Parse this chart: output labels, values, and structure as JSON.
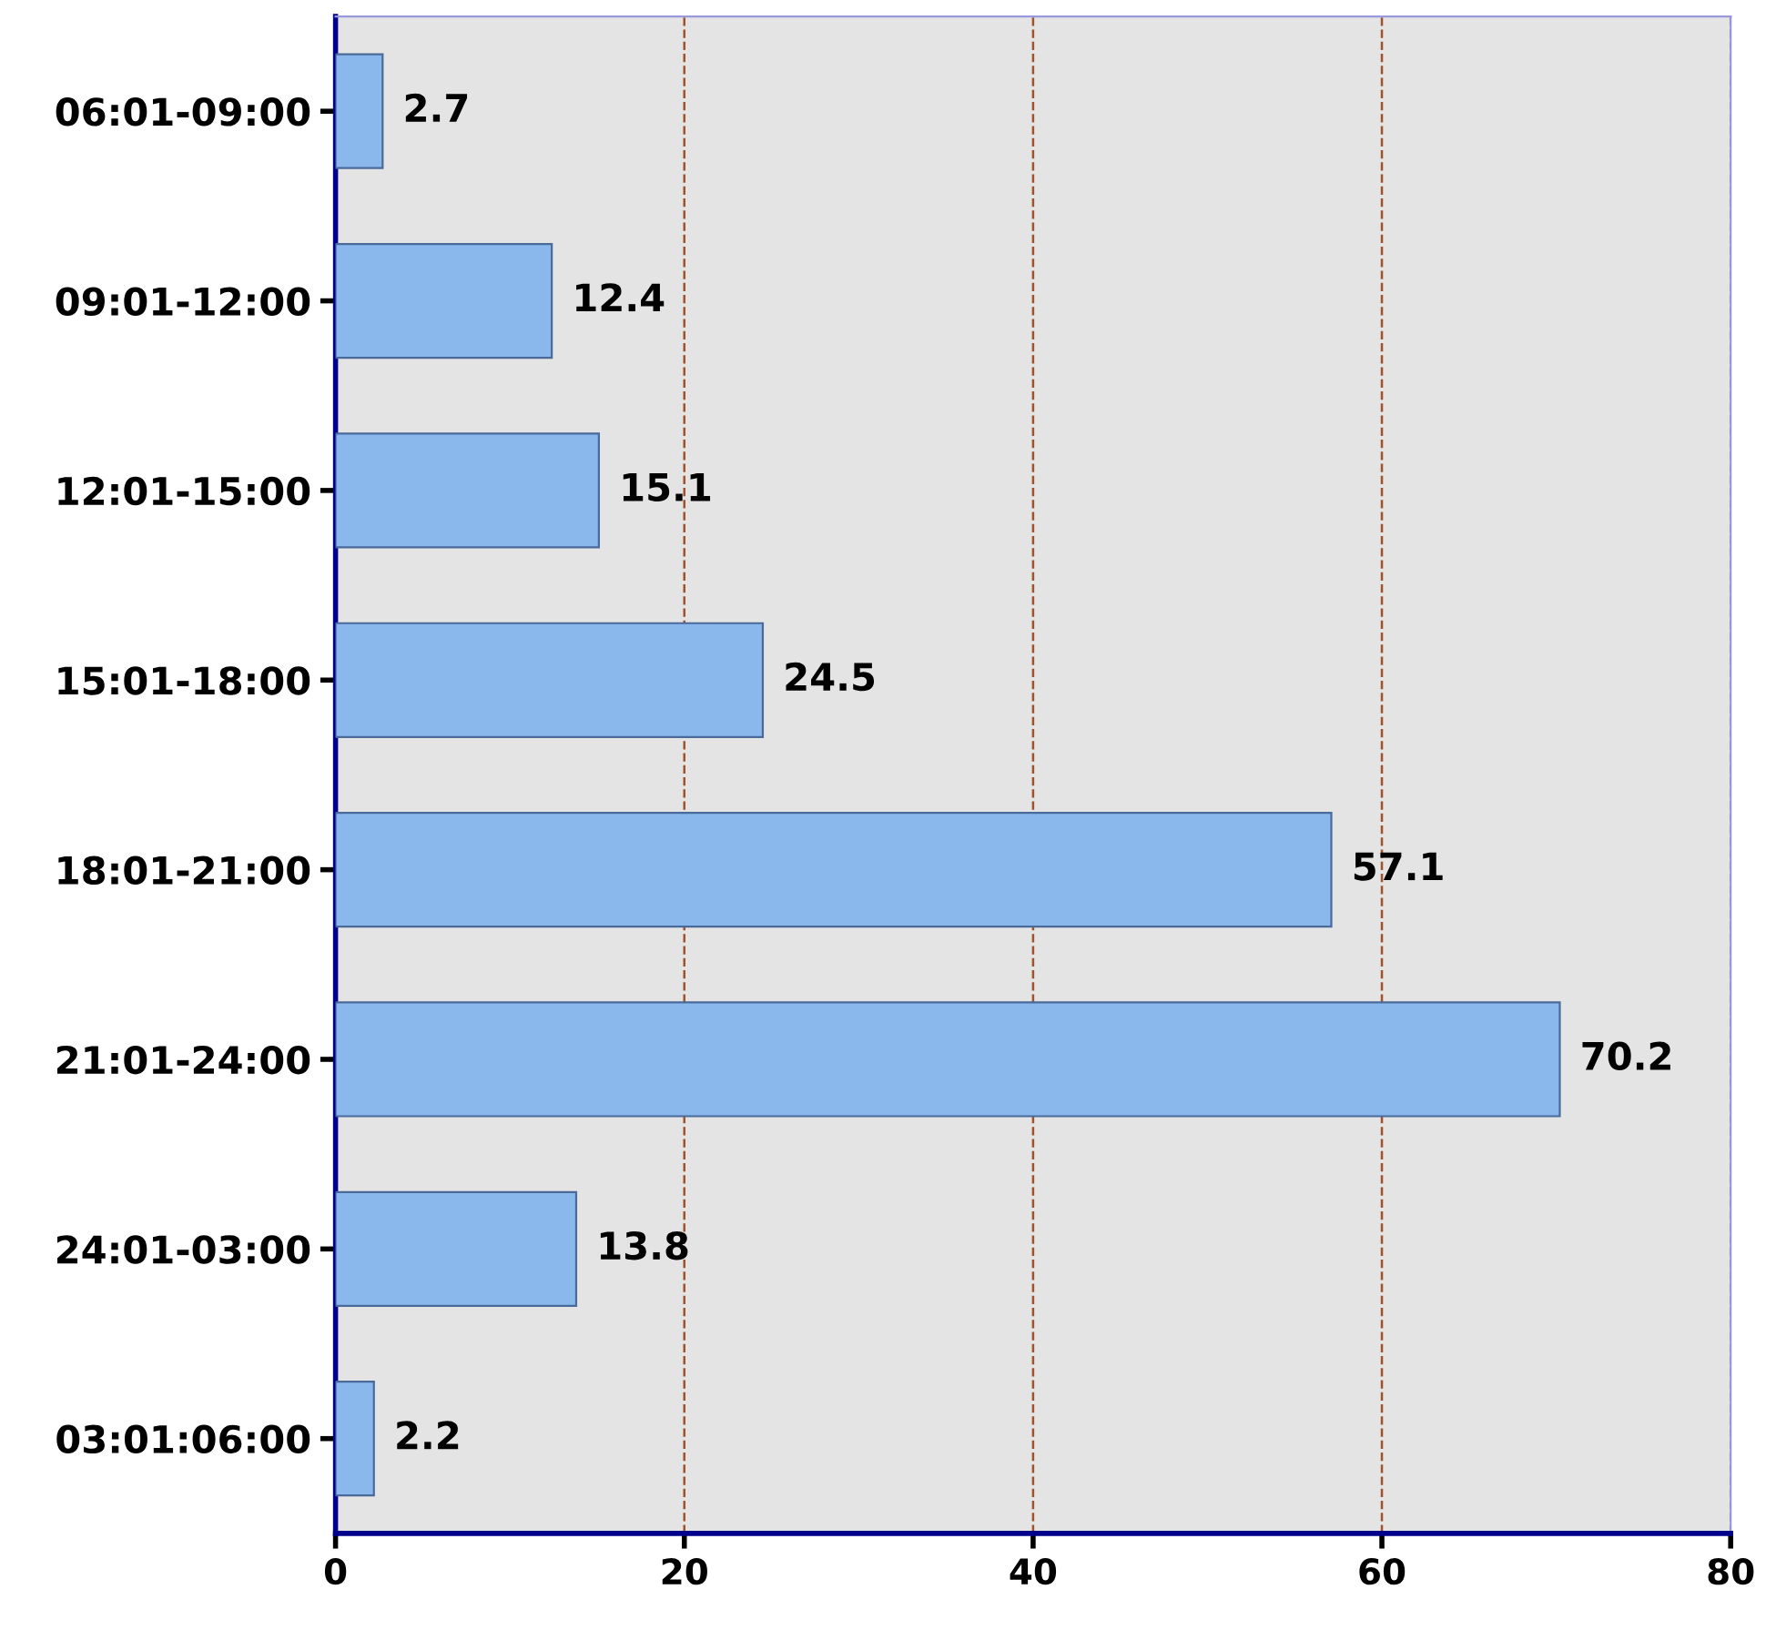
{
  "chart_data": {
    "type": "bar",
    "orientation": "horizontal",
    "categories": [
      "06:01-09:00",
      "09:01-12:00",
      "12:01-15:00",
      "15:01-18:00",
      "18:01-21:00",
      "21:01-24:00",
      "24:01-03:00",
      "03:01:06:00"
    ],
    "values": [
      2.7,
      12.4,
      15.1,
      24.5,
      57.1,
      70.2,
      13.8,
      2.2
    ],
    "color": "#8ab8ec",
    "data_labels": true,
    "xlim": [
      0,
      80
    ],
    "xticks": [
      0,
      20,
      40,
      60,
      80
    ],
    "grid": "x"
  }
}
